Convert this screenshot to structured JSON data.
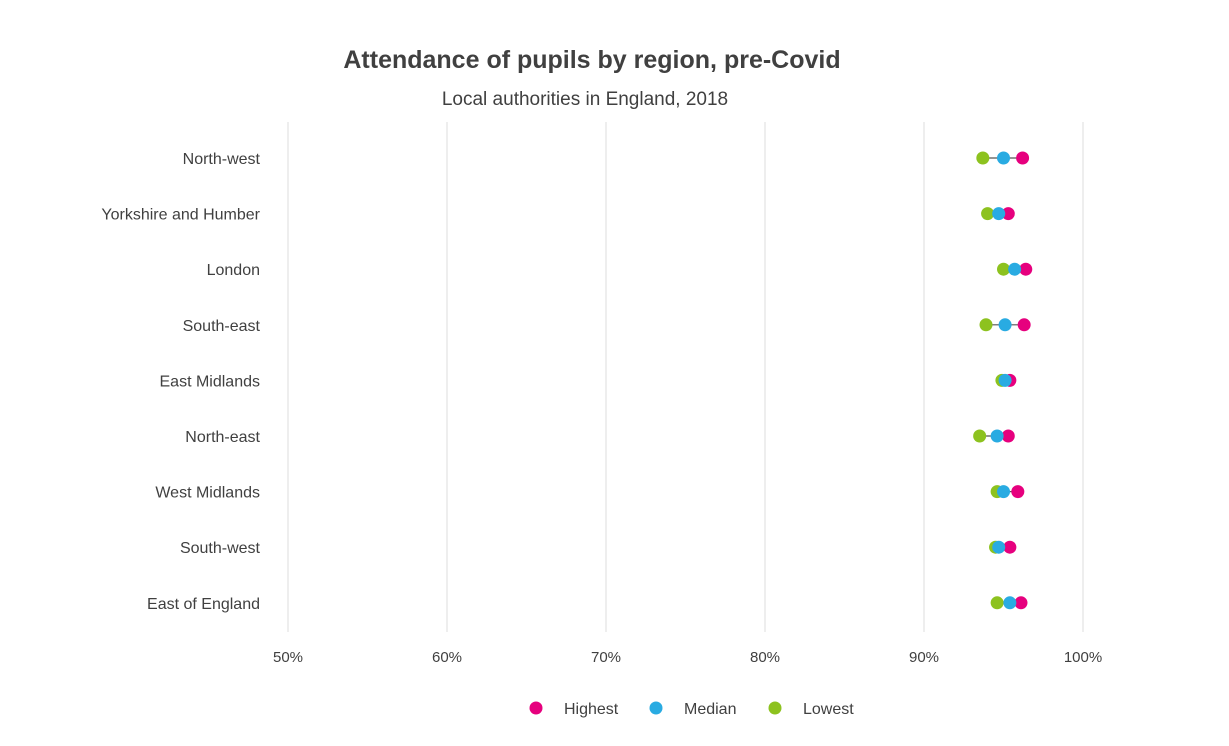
{
  "chart_data": {
    "type": "dot",
    "title": "Attendance of pupils by region, pre-Covid",
    "subtitle": "Local authorities in England, 2018",
    "xlabel": "",
    "ylabel": "",
    "xlim": [
      50,
      100
    ],
    "xticks": [
      50,
      60,
      70,
      80,
      90,
      100
    ],
    "xtick_labels": [
      "50%",
      "60%",
      "70%",
      "80%",
      "90%",
      "100%"
    ],
    "grid": "vertical",
    "legend_position": "bottom",
    "categories": [
      "North-west",
      "Yorkshire and Humber",
      "London",
      "South-east",
      "East Midlands",
      "North-east",
      "West Midlands",
      "South-west",
      "East of England"
    ],
    "series": [
      {
        "name": "Highest",
        "color": "#e6007e",
        "values": [
          96.2,
          95.3,
          96.4,
          96.3,
          95.4,
          95.3,
          95.9,
          95.4,
          96.1
        ]
      },
      {
        "name": "Median",
        "color": "#29abe2",
        "values": [
          95.0,
          94.7,
          95.7,
          95.1,
          95.1,
          94.6,
          95.0,
          94.7,
          95.4
        ]
      },
      {
        "name": "Lowest",
        "color": "#8dc21f",
        "values": [
          93.7,
          94.0,
          95.0,
          93.9,
          94.9,
          93.5,
          94.6,
          94.5,
          94.6
        ]
      }
    ]
  }
}
